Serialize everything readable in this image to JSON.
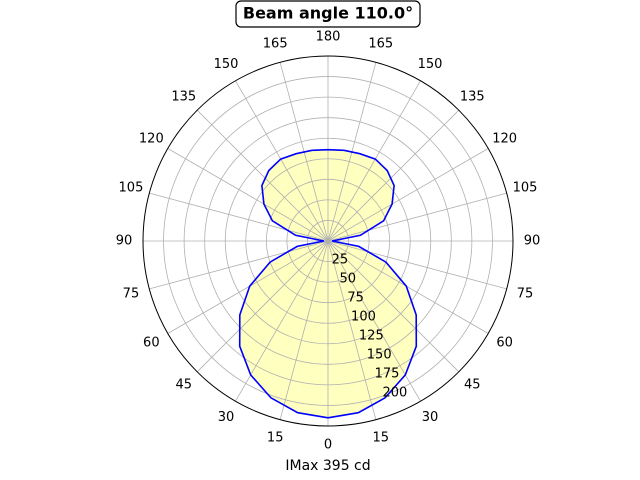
{
  "chart_data": {
    "type": "polar",
    "title": "Beam angle 110.0°",
    "xlabel": "IMax 395 cd",
    "theta": [
      0,
      10,
      20,
      30,
      40,
      50,
      60,
      70,
      80,
      90,
      100,
      110,
      120,
      130,
      140,
      150,
      160,
      170,
      180,
      190,
      200,
      210,
      220,
      230,
      240,
      250,
      260,
      270,
      280,
      290,
      300,
      310,
      320,
      330,
      340,
      350,
      360
    ],
    "values": [
      215,
      212,
      203,
      188,
      167,
      140,
      110,
      75,
      38,
      5,
      40,
      72,
      90,
      105,
      112,
      115,
      113,
      112,
      111,
      112,
      113,
      115,
      112,
      105,
      90,
      72,
      40,
      5,
      38,
      75,
      110,
      140,
      167,
      188,
      203,
      212,
      215
    ],
    "line_color": "#0000ff",
    "fill_color": "#ffffc0",
    "rlim": [
      0,
      225
    ],
    "rticks": [
      25,
      50,
      75,
      100,
      125,
      150,
      175,
      200
    ],
    "thetaticks": [
      0,
      15,
      30,
      45,
      60,
      75,
      90,
      105,
      120,
      135,
      150,
      165,
      180,
      {
        "value": 195,
        "label": "165"
      },
      {
        "value": 210,
        "label": "150"
      },
      {
        "value": 225,
        "label": "135"
      },
      {
        "value": 240,
        "label": "120"
      },
      {
        "value": 255,
        "label": "105"
      },
      {
        "value": 270,
        "label": "90"
      },
      {
        "value": 285,
        "label": "75"
      },
      {
        "value": 300,
        "label": "60"
      },
      {
        "value": 315,
        "label": "45"
      },
      {
        "value": 330,
        "label": "30"
      },
      {
        "value": 345,
        "label": "15"
      }
    ],
    "grid": true
  }
}
